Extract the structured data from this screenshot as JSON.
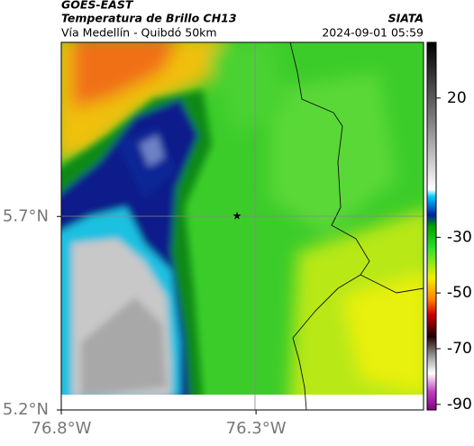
{
  "header": {
    "title": "GOES-EAST",
    "subtitle": "Temperatura de Brillo CH13",
    "route": "Vía Medellín - Quibdó 50km",
    "source": "SIATA",
    "timestamp": "2024-09-01 05:59"
  },
  "map": {
    "xlim": [
      -76.8,
      -75.87
    ],
    "ylim": [
      5.2,
      6.15
    ],
    "xticks": [
      {
        "value": -76.8,
        "label": "76.8°W"
      },
      {
        "value": -76.3,
        "label": "76.3°W"
      }
    ],
    "yticks": [
      {
        "value": 5.2,
        "label": "5.2°N"
      },
      {
        "value": 5.7,
        "label": "5.7°N"
      }
    ]
  },
  "colorbar": {
    "range": [
      -92,
      40
    ],
    "ticks": [
      20,
      -30,
      -50,
      -70,
      -90
    ]
  }
}
